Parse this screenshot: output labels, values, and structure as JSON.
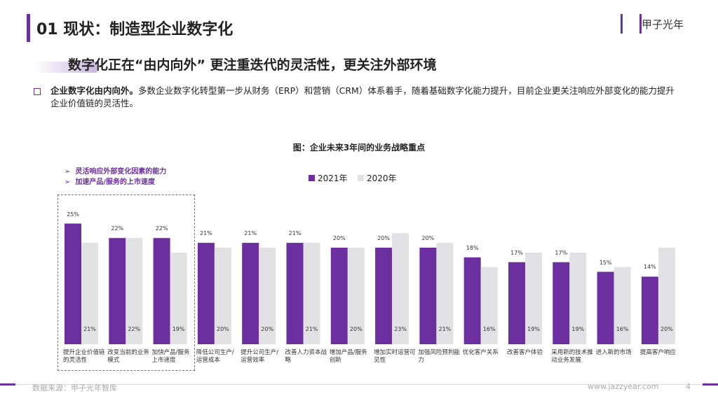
{
  "header": {
    "title": "01 现状：制造型企业数字化",
    "logo": "甲子光年"
  },
  "headline": "数字化正在“由内向外” 更注重迭代的灵活性，更关注外部环境",
  "bullet": {
    "lead": "企业数字化由内向外。",
    "text": "多数企业数字化转型第一步从财务（ERP）和营销（CRM）体系着手，随着基础数字化能力提升，目前企业更关注响应外部变化的能力提升企业价值链的灵活性。"
  },
  "highlights": [
    "灵活响应外部变化因素的能力",
    "加速产品/服务的上市速度"
  ],
  "footer": {
    "source": "数据来源：甲子光年智库",
    "site": "www.jazzyear.com",
    "page": "4"
  },
  "chart_data": {
    "type": "bar",
    "title": "图：企业未来3年间的业务战略重点",
    "categories": [
      "提升企业价值链的灵活性",
      "改变当前的业务模式",
      "加快产品/服务上市速度",
      "降低公司生产/运营成本",
      "提升公司生产/运营效率",
      "改善人力资本战略",
      "增加产品/服务创新",
      "增加实时运营可见性",
      "加强风险预判能力",
      "优化客户关系",
      "改善客户体验",
      "采用新的技术推动业务发展",
      "进入新的市场",
      "提高客户响应"
    ],
    "series": [
      {
        "name": "2021年",
        "color": "#6b2fa0",
        "values": [
          25,
          22,
          22,
          21,
          21,
          21,
          20,
          20,
          20,
          18,
          17,
          17,
          15,
          14
        ],
        "value_labels": [
          "25%",
          "22%",
          "22%",
          "21%",
          "21%",
          "21%",
          "20%",
          "20%",
          "20%",
          "18%",
          "17%",
          "17%",
          "15%",
          "14%"
        ]
      },
      {
        "name": "2020年",
        "color": "#e2e2e4",
        "values": [
          21,
          22,
          19,
          20,
          20,
          21,
          20,
          23,
          21,
          16,
          19,
          19,
          16,
          20
        ],
        "value_labels": [
          "21%",
          "22%",
          "19%",
          "20%",
          "20%",
          "21%",
          "20%",
          "23%",
          "21%",
          "16%",
          "19%",
          "19%",
          "16%",
          "20%"
        ]
      }
    ],
    "legend": "top"
  }
}
